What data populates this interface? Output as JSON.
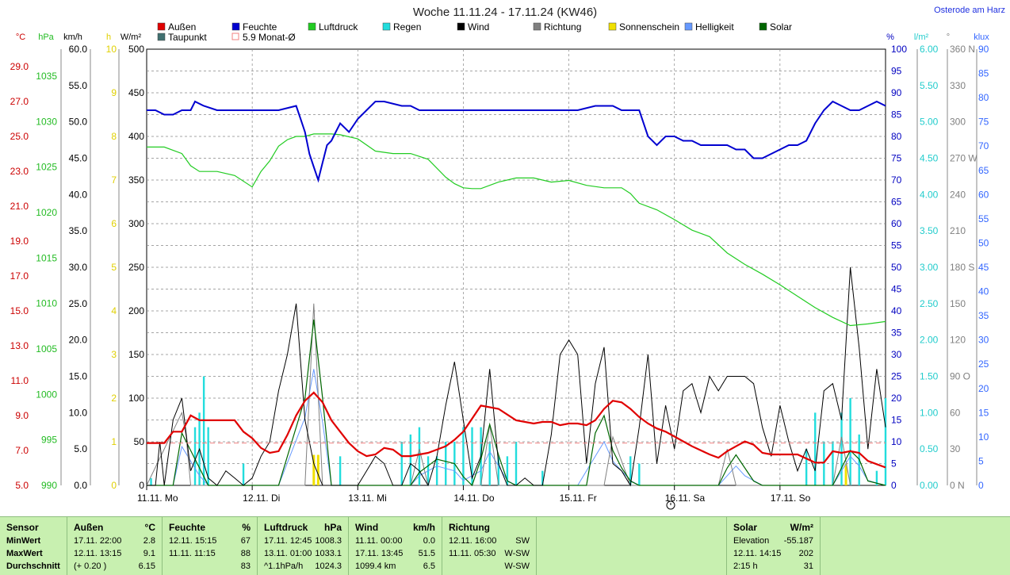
{
  "title": "Woche 11.11.24 - 17.11.24 (KW46)",
  "location": "Osterode am Harz",
  "legend": [
    {
      "label": "Außen",
      "color": "#e00000"
    },
    {
      "label": "Feuchte",
      "color": "#0000d0"
    },
    {
      "label": "Luftdruck",
      "color": "#22cc22"
    },
    {
      "label": "Regen",
      "color": "#22dddd"
    },
    {
      "label": "Wind",
      "color": "#000000"
    },
    {
      "label": "Richtung",
      "color": "#808080"
    },
    {
      "label": "Sonnenschein",
      "color": "#f0e000"
    },
    {
      "label": "Helligkeit",
      "color": "#6699ff"
    },
    {
      "label": "Solar",
      "color": "#006600"
    },
    {
      "label": "Taupunkt",
      "color": "#407070"
    },
    {
      "label": "5.9 Monat-Ø",
      "color": "#f08080"
    }
  ],
  "axis_units": {
    "temp": "°C",
    "pressure": "hPa",
    "wind": "km/h",
    "sunshine": "h",
    "solar": "W/m²",
    "humidity": "%",
    "rain": "l/m²",
    "direction": "°",
    "brightness": "klux"
  },
  "axes": {
    "temp": [
      "29.0",
      "27.0",
      "25.0",
      "23.0",
      "21.0",
      "19.0",
      "17.0",
      "15.0",
      "13.0",
      "11.0",
      "9.0",
      "7.0",
      "5.0"
    ],
    "pressure": [
      "1035",
      "1030",
      "1025",
      "1020",
      "1015",
      "1010",
      "1005",
      "1000",
      "995",
      "990"
    ],
    "wind": [
      "60.0",
      "55.0",
      "50.0",
      "45.0",
      "40.0",
      "35.0",
      "30.0",
      "25.0",
      "20.0",
      "15.0",
      "10.0",
      "5.0",
      "0.0"
    ],
    "sunshine": [
      "10",
      "9",
      "8",
      "7",
      "6",
      "5",
      "4",
      "3",
      "2",
      "1",
      "0"
    ],
    "solar": [
      "500",
      "450",
      "400",
      "350",
      "300",
      "250",
      "200",
      "150",
      "100",
      "50",
      "0"
    ],
    "humidity": [
      "100",
      "95",
      "90",
      "85",
      "80",
      "75",
      "70",
      "65",
      "60",
      "55",
      "50",
      "45",
      "40",
      "35",
      "30",
      "25",
      "20",
      "15",
      "10",
      "5",
      "0"
    ],
    "rain": [
      "6.00",
      "5.50",
      "5.00",
      "4.50",
      "4.00",
      "3.50",
      "3.00",
      "2.50",
      "2.00",
      "1.50",
      "1.00",
      "0.50",
      "0.00"
    ],
    "direction": [
      "360 N",
      "330",
      "300",
      "270 W",
      "240",
      "210",
      "180 S",
      "150",
      "120",
      "90 O",
      "60",
      "30",
      "0 N"
    ],
    "brightness": [
      "90",
      "85",
      "80",
      "75",
      "70",
      "65",
      "60",
      "55",
      "50",
      "45",
      "40",
      "35",
      "30",
      "25",
      "20",
      "15",
      "10",
      "5",
      "0"
    ]
  },
  "chart_data": {
    "type": "line",
    "title": "Woche 11.11.24 - 17.11.24 (KW46)",
    "x_labels": [
      "11.11. Mo",
      "12.11. Di",
      "13.11. Mi",
      "14.11. Do",
      "15.11. Fr",
      "16.11. Sa",
      "17.11. So"
    ],
    "x_unit_hours": "0..168",
    "series": [
      {
        "name": "Außen",
        "unit": "°C",
        "color": "#e00000",
        "x": [
          0,
          4,
          6,
          8,
          10,
          12,
          16,
          20,
          22,
          24,
          26,
          28,
          30,
          32,
          34,
          36,
          38,
          40,
          42,
          44,
          46,
          48,
          50,
          52,
          54,
          56,
          58,
          60,
          62,
          64,
          66,
          68,
          70,
          72,
          76,
          80,
          84,
          88,
          90,
          92,
          94,
          96,
          98,
          100,
          102,
          104,
          106,
          108,
          110,
          112,
          114,
          116,
          118,
          120,
          124,
          128,
          130,
          132,
          134,
          136,
          138,
          140,
          142,
          144,
          148,
          152,
          154,
          156,
          158,
          160,
          162,
          164,
          166,
          168
        ],
        "y": [
          5.9,
          5.9,
          6.6,
          6.6,
          7.6,
          7.3,
          7.3,
          7.3,
          6.6,
          6.2,
          5.6,
          5.3,
          5.4,
          6.4,
          7.6,
          8.5,
          9.0,
          8.4,
          7.3,
          6.6,
          5.9,
          5.4,
          5.1,
          5.2,
          5.6,
          5.5,
          5.1,
          5.1,
          5.2,
          5.3,
          5.5,
          5.7,
          6.1,
          6.6,
          8.2,
          8.0,
          7.3,
          7.1,
          7.2,
          7.2,
          7.0,
          7.1,
          7.1,
          7.0,
          7.3,
          8.0,
          8.5,
          8.4,
          8.0,
          7.5,
          7.1,
          6.8,
          6.6,
          6.3,
          5.7,
          5.2,
          5.0,
          5.4,
          5.7,
          6.0,
          5.8,
          5.3,
          5.2,
          5.2,
          5.2,
          4.7,
          4.7,
          5.4,
          5.3,
          5.4,
          5.3,
          4.8,
          4.6,
          4.4
        ]
      },
      {
        "name": "Feuchte",
        "unit": "%",
        "color": "#0000d0",
        "x": [
          0,
          2,
          4,
          6,
          8,
          10,
          11,
          13,
          16,
          20,
          24,
          28,
          30,
          34,
          35,
          36,
          37,
          38,
          39,
          40,
          41,
          42,
          43,
          44,
          46,
          48,
          50,
          52,
          54,
          58,
          60,
          62,
          66,
          70,
          74,
          78,
          82,
          86,
          90,
          94,
          98,
          102,
          104,
          106,
          108,
          110,
          112,
          114,
          116,
          118,
          120,
          122,
          124,
          126,
          128,
          130,
          132,
          134,
          136,
          138,
          140,
          142,
          144,
          146,
          148,
          150,
          152,
          154,
          156,
          158,
          160,
          162,
          164,
          166,
          168
        ],
        "y": [
          86,
          86,
          85,
          85,
          86,
          86,
          88,
          87,
          86,
          86,
          86,
          86,
          86,
          87,
          84,
          81,
          76,
          73,
          70,
          74,
          78,
          79,
          81,
          83,
          81,
          84,
          86,
          88,
          88,
          87,
          87,
          86,
          86,
          86,
          86,
          86,
          86,
          86,
          86,
          86,
          86,
          87,
          87,
          87,
          86,
          86,
          86,
          80,
          78,
          80,
          80,
          79,
          79,
          78,
          78,
          78,
          78,
          77,
          77,
          75,
          75,
          76,
          77,
          78,
          78,
          79,
          83,
          86,
          88,
          87,
          86,
          86,
          87,
          88,
          87
        ]
      },
      {
        "name": "Luftdruck",
        "unit": "hPa",
        "color": "#22cc22",
        "x": [
          0,
          4,
          8,
          10,
          12,
          16,
          20,
          24,
          26,
          28,
          30,
          32,
          34,
          36,
          38,
          40,
          42,
          44,
          48,
          52,
          56,
          60,
          64,
          68,
          70,
          72,
          74,
          76,
          80,
          84,
          88,
          92,
          96,
          100,
          104,
          108,
          110,
          112,
          116,
          120,
          124,
          128,
          132,
          136,
          140,
          144,
          148,
          152,
          156,
          160,
          164,
          168
        ],
        "y": [
          1031.5,
          1031.5,
          1030.7,
          1029.2,
          1028.5,
          1028.5,
          1028.0,
          1026.6,
          1028.5,
          1029.8,
          1031.6,
          1032.4,
          1032.8,
          1032.8,
          1033.1,
          1033.1,
          1033.1,
          1033.0,
          1032.5,
          1031.0,
          1030.7,
          1030.7,
          1030.0,
          1027.8,
          1027.0,
          1026.5,
          1026.4,
          1026.4,
          1027.2,
          1027.7,
          1027.7,
          1027.2,
          1027.4,
          1026.8,
          1026.5,
          1026.5,
          1025.8,
          1024.6,
          1023.8,
          1022.6,
          1021.3,
          1020.5,
          1018.5,
          1017.1,
          1015.9,
          1014.6,
          1013.2,
          1011.8,
          1010.6,
          1009.6,
          1009.8,
          1010.1
        ]
      },
      {
        "name": "Wind",
        "unit": "km/h",
        "color": "#000000",
        "x": [
          0,
          2,
          3,
          4,
          6,
          8,
          10,
          12,
          14,
          16,
          18,
          20,
          22,
          24,
          26,
          28,
          30,
          32,
          34,
          36,
          38,
          40,
          42,
          44,
          46,
          48,
          50,
          52,
          54,
          56,
          58,
          60,
          62,
          64,
          66,
          68,
          70,
          72,
          74,
          76,
          78,
          80,
          82,
          84,
          86,
          88,
          90,
          92,
          94,
          96,
          98,
          100,
          102,
          104,
          106,
          108,
          110,
          112,
          114,
          116,
          118,
          120,
          122,
          124,
          126,
          128,
          130,
          132,
          134,
          136,
          138,
          140,
          142,
          144,
          146,
          148,
          150,
          152,
          154,
          156,
          158,
          160,
          162,
          164,
          166,
          168
        ],
        "y": [
          0,
          0,
          6,
          0,
          9,
          12,
          2,
          5,
          1,
          0,
          2,
          1,
          0,
          1,
          4,
          6,
          13,
          18,
          25,
          9,
          3,
          0,
          0,
          0,
          0,
          0,
          2,
          4,
          3,
          0,
          0,
          3,
          2,
          0,
          4,
          11,
          17,
          9,
          1,
          4,
          16,
          3,
          0,
          0,
          1,
          0,
          0,
          7,
          18,
          20,
          18,
          3,
          14,
          19,
          3,
          2,
          0,
          8,
          18,
          3,
          11,
          5,
          13,
          14,
          10,
          15,
          13,
          15,
          15,
          15,
          14,
          8,
          4,
          11,
          6,
          2,
          5,
          2,
          13,
          14,
          9,
          30,
          19,
          5,
          16,
          8
        ]
      },
      {
        "name": "Regen",
        "unit": "l/m²",
        "color": "#22dddd",
        "x": [
          1,
          11,
          12,
          13,
          14,
          22,
          44,
          58,
          60,
          62,
          64,
          66,
          68,
          70,
          72,
          74,
          76,
          78,
          80,
          82,
          84,
          90,
          110,
          112,
          150,
          152,
          154,
          156,
          158,
          160,
          162,
          166,
          168
        ],
        "y": [
          0.1,
          0.8,
          1.0,
          1.5,
          0.8,
          0.3,
          0.4,
          0.6,
          0.7,
          0.8,
          0.4,
          0.4,
          0.6,
          0.6,
          0.8,
          0.8,
          0.8,
          0.6,
          0.4,
          0.4,
          0.6,
          0.2,
          0.4,
          0.3,
          0.5,
          1.0,
          0.6,
          0.6,
          1.0,
          1.2,
          0.7,
          0.2,
          1.2
        ]
      },
      {
        "name": "Sonnenschein",
        "unit": "h",
        "color": "#f0e000",
        "x": [
          38,
          39,
          159
        ],
        "y": [
          0.7,
          0.7,
          0.5
        ]
      },
      {
        "name": "Solar",
        "unit": "W/m²",
        "color": "#006600",
        "x": [
          0,
          6,
          8,
          10,
          12,
          14,
          30,
          36,
          38,
          40,
          42,
          60,
          62,
          66,
          70,
          72,
          74,
          76,
          78,
          80,
          82,
          84,
          86,
          90,
          98,
          100,
          102,
          104,
          106,
          108,
          110,
          112,
          114,
          130,
          132,
          134,
          136,
          138,
          140,
          156,
          158,
          160,
          162,
          164,
          168
        ],
        "y": [
          0,
          0,
          60,
          40,
          20,
          0,
          0,
          100,
          190,
          100,
          0,
          0,
          15,
          30,
          25,
          10,
          0,
          30,
          70,
          35,
          5,
          0,
          0,
          0,
          0,
          0,
          60,
          80,
          40,
          20,
          5,
          0,
          0,
          0,
          20,
          35,
          20,
          5,
          0,
          0,
          20,
          40,
          30,
          5,
          0
        ]
      },
      {
        "name": "Helligkeit",
        "unit": "klux",
        "color": "#6699ff",
        "x": [
          0,
          6,
          8,
          10,
          12,
          14,
          30,
          36,
          38,
          40,
          42,
          60,
          62,
          66,
          70,
          72,
          76,
          78,
          80,
          82,
          84,
          98,
          102,
          104,
          106,
          108,
          110,
          112,
          130,
          132,
          134,
          136,
          138,
          140,
          156,
          158,
          160,
          162,
          164,
          168
        ],
        "y": [
          0,
          0,
          8,
          5,
          2,
          0,
          0,
          14,
          24,
          13,
          0,
          0,
          2,
          4,
          3,
          1,
          3,
          7,
          4,
          1,
          0,
          0,
          6,
          9,
          5,
          3,
          1,
          0,
          0,
          2,
          4,
          2,
          1,
          0,
          0,
          3,
          6,
          4,
          1,
          0
        ]
      },
      {
        "name": "Richtung",
        "unit": "°",
        "color": "#808080",
        "x": [
          0,
          8,
          9,
          10,
          36,
          38,
          40,
          60,
          62,
          64,
          76,
          78,
          80,
          104,
          106,
          108,
          110,
          130,
          132,
          134,
          136,
          156,
          158,
          160
        ],
        "y": [
          0,
          60,
          40,
          0,
          0,
          150,
          0,
          0,
          30,
          0,
          0,
          50,
          0,
          0,
          40,
          20,
          0,
          0,
          30,
          0,
          0,
          0,
          40,
          0
        ]
      },
      {
        "name": "5.9 Monat-Ø",
        "unit": "°C",
        "color": "#f08080",
        "x": [
          0,
          168
        ],
        "y": [
          5.9,
          5.9
        ]
      }
    ],
    "ylim": {
      "temp": [
        5,
        30
      ],
      "pressure": [
        990,
        1040
      ],
      "wind": [
        0,
        60
      ],
      "sunshine": [
        0,
        10
      ],
      "solar": [
        0,
        500
      ],
      "humidity": [
        0,
        100
      ],
      "rain": [
        0,
        6
      ],
      "direction": [
        0,
        360
      ],
      "brightness": [
        0,
        90
      ]
    },
    "grid": true
  },
  "stats": {
    "sensor": {
      "title": "Sensor",
      "rows": [
        "MinWert",
        "MaxWert",
        "Durchschnitt"
      ]
    },
    "aussen": {
      "title": "Außen",
      "unit": "°C",
      "rows": [
        [
          "17.11.  22:00",
          "2.8"
        ],
        [
          "12.11.  13:15",
          "9.1"
        ],
        [
          "(+ 0.20 )",
          "6.15"
        ]
      ]
    },
    "feuchte": {
      "title": "Feuchte",
      "unit": "%",
      "rows": [
        [
          "12.11.  15:15",
          "67"
        ],
        [
          "11.11.  11:15",
          "88"
        ],
        [
          "",
          "83"
        ]
      ]
    },
    "luftdruck": {
      "title": "Luftdruck",
      "unit": "hPa",
      "rows": [
        [
          "17.11.  12:45",
          "1008.3"
        ],
        [
          "13.11.  01:00",
          "1033.1"
        ],
        [
          "^1.1hPa/h",
          "1024.3"
        ]
      ]
    },
    "wind": {
      "title": "Wind",
      "unit": "km/h",
      "rows": [
        [
          "11.11.  00:00",
          "0.0"
        ],
        [
          "17.11.  13:45",
          "51.5"
        ],
        [
          "1099.4 km",
          "6.5"
        ]
      ]
    },
    "richtung": {
      "title": "Richtung",
      "rows": [
        [
          "12.11.  16:00",
          "SW"
        ],
        [
          "11.11.  05:30",
          "W-SW"
        ],
        [
          "",
          "W-SW"
        ]
      ]
    },
    "solar": {
      "title": "Solar",
      "unit": "W/m²",
      "rows": [
        [
          "Elevation",
          "-55.187"
        ],
        [
          "12.11.  14:15",
          "202"
        ],
        [
          "2:15 h",
          "31"
        ]
      ]
    }
  }
}
